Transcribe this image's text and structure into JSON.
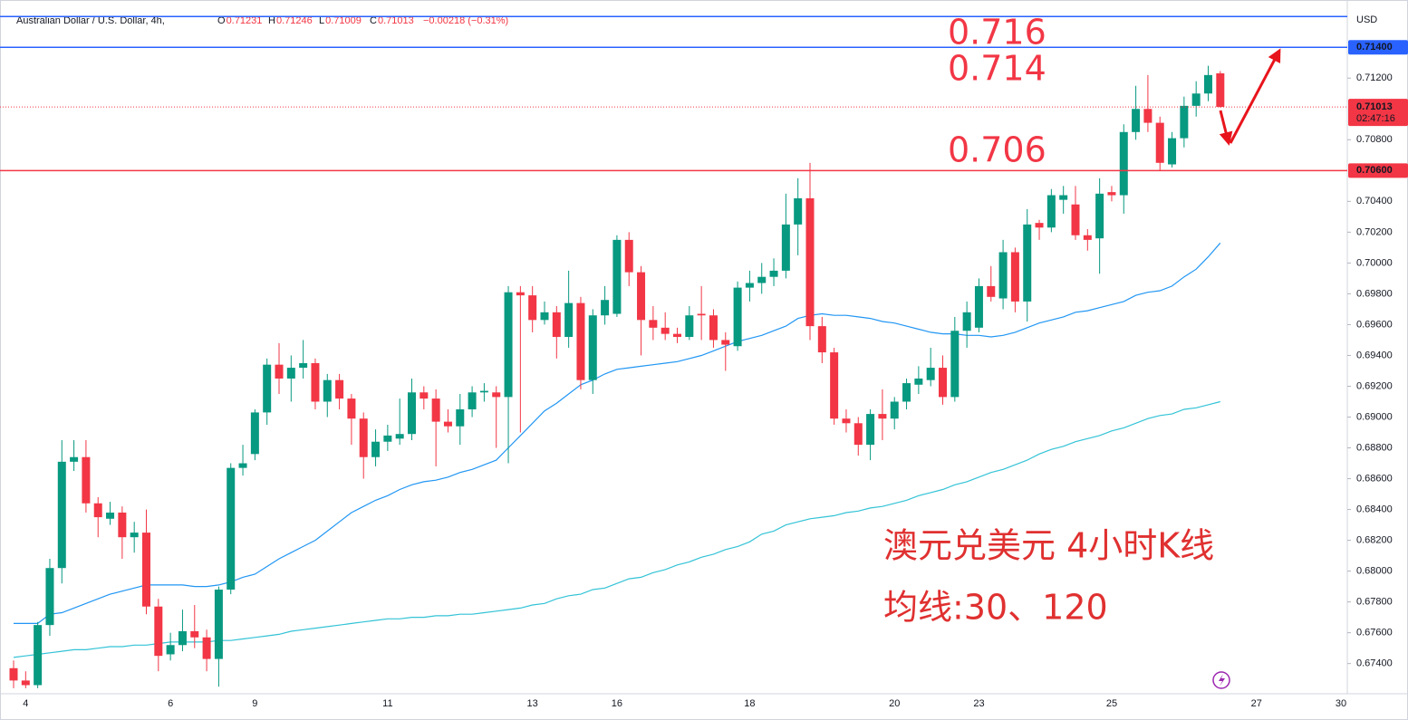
{
  "chart_data": {
    "type": "candlestick",
    "header": {
      "symbol": "Australian Dollar / U.S. Dollar, 4h,",
      "fields": [
        {
          "label": "O",
          "value": 0.71231
        },
        {
          "label": "H",
          "value": 0.71246
        },
        {
          "label": "L",
          "value": 0.71009
        },
        {
          "label": "C",
          "value": 0.71013
        }
      ],
      "change": "−0.00218 (−0.31%)"
    },
    "currency": "USD",
    "categories": [
      null,
      "4",
      null,
      null,
      null,
      null,
      null,
      null,
      null,
      null,
      null,
      null,
      null,
      "6",
      null,
      null,
      null,
      null,
      null,
      null,
      "9",
      null,
      null,
      null,
      null,
      null,
      null,
      null,
      null,
      null,
      null,
      "11",
      null,
      null,
      null,
      null,
      null,
      null,
      null,
      null,
      null,
      null,
      null,
      "13",
      null,
      null,
      null,
      null,
      null,
      null,
      "16",
      null,
      null,
      null,
      null,
      null,
      null,
      null,
      null,
      null,
      null,
      "18",
      null,
      null,
      null,
      null,
      null,
      null,
      null,
      null,
      null,
      null,
      null,
      "20",
      null,
      null,
      null,
      null,
      null,
      null,
      "23",
      null,
      null,
      null,
      null,
      null,
      null,
      null,
      null,
      null,
      null,
      "25",
      null,
      null,
      null,
      null,
      null,
      null,
      null,
      null,
      null,
      null,
      null,
      "27",
      null,
      null,
      null,
      null,
      null,
      null,
      "30"
    ],
    "open": [
      0.6737,
      0.6729,
      0.6726,
      0.6765,
      0.6802,
      0.6871,
      0.6874,
      0.6844,
      0.6834,
      0.6838,
      0.6822,
      0.6825,
      0.6777,
      0.6746,
      0.6752,
      0.6761,
      0.6757,
      0.6743,
      0.6788,
      0.6867,
      0.6876,
      0.6903,
      0.6934,
      0.6925,
      0.6932,
      0.6935,
      0.691,
      0.6924,
      0.6912,
      0.6899,
      0.6874,
      0.6884,
      0.6886,
      0.6889,
      0.6916,
      0.6912,
      0.6897,
      0.6894,
      0.6905,
      0.6916,
      0.6916,
      0.6913,
      0.6981,
      0.6979,
      0.6963,
      0.6968,
      0.6952,
      0.6974,
      0.6924,
      0.6966,
      0.6967,
      0.7015,
      0.6994,
      0.6963,
      0.6958,
      0.6954,
      0.6952,
      0.6967,
      0.6966,
      0.695,
      0.6946,
      0.6984,
      0.6987,
      0.6991,
      0.6995,
      0.7025,
      0.7042,
      0.6959,
      0.6942,
      0.6899,
      0.6896,
      0.6882,
      0.6902,
      0.6899,
      0.691,
      0.6921,
      0.6924,
      0.6932,
      0.6913,
      0.6956,
      0.6958,
      0.6985,
      0.6977,
      0.7007,
      0.6975,
      0.7026,
      0.7023,
      0.7041,
      0.7038,
      0.7018,
      0.7016,
      0.7046,
      0.7044,
      0.7085,
      0.71,
      0.7091,
      0.7064,
      0.7081,
      0.7102,
      0.711,
      0.71231,
      null,
      null,
      null,
      null,
      null,
      null,
      null,
      null,
      null,
      null
    ],
    "high": [
      0.6742,
      0.6735,
      0.6767,
      0.6808,
      0.6885,
      0.6885,
      0.6885,
      0.6848,
      0.6845,
      0.6842,
      0.6832,
      0.684,
      0.6782,
      0.676,
      0.6775,
      0.6778,
      0.6762,
      0.679,
      0.687,
      0.6882,
      0.6905,
      0.6938,
      0.6948,
      0.694,
      0.695,
      0.6938,
      0.6928,
      0.6928,
      0.6915,
      0.6903,
      0.6892,
      0.6895,
      0.6912,
      0.6925,
      0.692,
      0.6918,
      0.6905,
      0.6915,
      0.692,
      0.6922,
      0.692,
      0.6985,
      0.6985,
      0.6985,
      0.6975,
      0.6972,
      0.6995,
      0.6978,
      0.697,
      0.6985,
      0.7018,
      0.702,
      0.6998,
      0.6972,
      0.6968,
      0.6958,
      0.6972,
      0.6985,
      0.697,
      0.6955,
      0.6988,
      0.6995,
      0.7,
      0.7003,
      0.7045,
      0.7055,
      0.7065,
      0.6965,
      0.6945,
      0.6905,
      0.69,
      0.6905,
      0.6918,
      0.6913,
      0.6925,
      0.6933,
      0.6945,
      0.694,
      0.6965,
      0.6975,
      0.699,
      0.6998,
      0.7015,
      0.701,
      0.7035,
      0.7028,
      0.7048,
      0.705,
      0.705,
      0.7022,
      0.7055,
      0.705,
      0.709,
      0.7115,
      0.7122,
      0.7095,
      0.7085,
      0.7108,
      0.7118,
      0.7128,
      0.71246,
      null,
      null,
      null,
      null,
      null,
      null,
      null,
      null,
      null,
      null
    ],
    "low": [
      0.6724,
      0.6724,
      0.6724,
      0.6758,
      0.6792,
      0.6865,
      0.6838,
      0.6822,
      0.683,
      0.6808,
      0.6812,
      0.6772,
      0.6735,
      0.6742,
      0.6748,
      0.675,
      0.6735,
      0.6725,
      0.6785,
      0.6862,
      0.6872,
      0.6895,
      0.6915,
      0.691,
      0.6925,
      0.6905,
      0.69,
      0.6905,
      0.6882,
      0.686,
      0.6868,
      0.6878,
      0.6882,
      0.6885,
      0.6905,
      0.6868,
      0.689,
      0.6882,
      0.69,
      0.691,
      0.688,
      0.687,
      0.689,
      0.6955,
      0.696,
      0.6938,
      0.6945,
      0.6918,
      0.6915,
      0.696,
      0.6965,
      0.6985,
      0.694,
      0.695,
      0.695,
      0.6948,
      0.695,
      0.695,
      0.6945,
      0.693,
      0.6943,
      0.6975,
      0.698,
      0.6985,
      0.699,
      0.7005,
      0.695,
      0.6935,
      0.6895,
      0.689,
      0.6875,
      0.6872,
      0.6885,
      0.6892,
      0.6905,
      0.6915,
      0.692,
      0.6908,
      0.691,
      0.6945,
      0.6955,
      0.6975,
      0.697,
      0.6968,
      0.6962,
      0.7015,
      0.702,
      0.7032,
      0.7015,
      0.7008,
      0.6993,
      0.704,
      0.7032,
      0.708,
      0.7085,
      0.706,
      0.7062,
      0.7075,
      0.7095,
      0.7105,
      0.71009,
      null,
      null,
      null,
      null,
      null,
      null,
      null,
      null,
      null,
      null
    ],
    "close": [
      0.6729,
      0.6726,
      0.6765,
      0.6802,
      0.6871,
      0.6874,
      0.6844,
      0.6835,
      0.6838,
      0.6822,
      0.6825,
      0.6777,
      0.6745,
      0.6752,
      0.6761,
      0.6757,
      0.6743,
      0.6788,
      0.6867,
      0.687,
      0.6903,
      0.6934,
      0.6925,
      0.6932,
      0.6935,
      0.691,
      0.6924,
      0.6912,
      0.6899,
      0.6874,
      0.6884,
      0.6888,
      0.6889,
      0.6916,
      0.6912,
      0.6897,
      0.6894,
      0.6905,
      0.6916,
      0.6917,
      0.6913,
      0.6981,
      0.6979,
      0.6963,
      0.6968,
      0.6952,
      0.6974,
      0.6924,
      0.6966,
      0.6976,
      0.7015,
      0.6994,
      0.6963,
      0.6958,
      0.6954,
      0.6952,
      0.6966,
      0.6966,
      0.695,
      0.6947,
      0.6984,
      0.6987,
      0.6991,
      0.6995,
      0.7025,
      0.7042,
      0.6959,
      0.6942,
      0.6899,
      0.6896,
      0.6882,
      0.6902,
      0.6899,
      0.691,
      0.6922,
      0.6925,
      0.6932,
      0.6913,
      0.6956,
      0.6968,
      0.6985,
      0.6978,
      0.7007,
      0.6975,
      0.7025,
      0.7023,
      0.7044,
      0.7044,
      0.7018,
      0.7015,
      0.7045,
      0.7044,
      0.7085,
      0.71,
      0.7091,
      0.7065,
      0.7081,
      0.7102,
      0.711,
      0.7122,
      0.71013,
      null,
      null,
      null,
      null,
      null,
      null,
      null,
      null,
      null,
      null
    ],
    "up_color": "#089981",
    "down_color": "#f23645",
    "series": [
      {
        "color": "#2196f3",
        "values": [
          0.6766,
          0.6766,
          0.6766,
          0.6772,
          0.6773,
          0.6776,
          0.6779,
          0.6782,
          0.6785,
          0.6787,
          0.6789,
          0.6791,
          0.6791,
          0.6791,
          0.6791,
          0.679,
          0.679,
          0.6791,
          0.6793,
          0.6796,
          0.6798,
          0.6803,
          0.6808,
          0.6812,
          0.6816,
          0.682,
          0.6826,
          0.6832,
          0.6838,
          0.6842,
          0.6846,
          0.6849,
          0.6853,
          0.6856,
          0.6858,
          0.6859,
          0.6861,
          0.6864,
          0.6866,
          0.6869,
          0.6872,
          0.688,
          0.6888,
          0.6896,
          0.6904,
          0.6909,
          0.6915,
          0.6921,
          0.6924,
          0.6928,
          0.6931,
          0.6932,
          0.6933,
          0.6934,
          0.6935,
          0.6936,
          0.6938,
          0.694,
          0.6943,
          0.6946,
          0.6949,
          0.6951,
          0.6953,
          0.6956,
          0.6959,
          0.6964,
          0.6966,
          0.6967,
          0.6966,
          0.6966,
          0.6965,
          0.6964,
          0.6962,
          0.6961,
          0.6959,
          0.6957,
          0.6955,
          0.6954,
          0.6954,
          0.6953,
          0.6953,
          0.6952,
          0.6953,
          0.6955,
          0.6958,
          0.6961,
          0.6963,
          0.6965,
          0.6968,
          0.6969,
          0.6971,
          0.6973,
          0.6975,
          0.6979,
          0.6981,
          0.6982,
          0.6985,
          0.6991,
          0.6996,
          0.7004,
          0.7013,
          null,
          null,
          null,
          null,
          null,
          null,
          null,
          null,
          null,
          null
        ]
      },
      {
        "color": "#33c3d6",
        "values": [
          0.6744,
          0.6745,
          0.6746,
          0.6747,
          0.6748,
          0.6749,
          0.6749,
          0.675,
          0.6751,
          0.6751,
          0.6752,
          0.6752,
          0.6753,
          0.6754,
          0.6754,
          0.6754,
          0.6754,
          0.6755,
          0.6755,
          0.6756,
          0.6757,
          0.6758,
          0.6759,
          0.6761,
          0.6762,
          0.6763,
          0.6764,
          0.6765,
          0.6766,
          0.6767,
          0.6768,
          0.6769,
          0.6769,
          0.677,
          0.677,
          0.6771,
          0.6771,
          0.6772,
          0.6772,
          0.6773,
          0.6774,
          0.6775,
          0.6776,
          0.6778,
          0.6779,
          0.6782,
          0.6784,
          0.6785,
          0.6788,
          0.6789,
          0.6792,
          0.6795,
          0.6796,
          0.6799,
          0.6801,
          0.6804,
          0.6806,
          0.6809,
          0.6811,
          0.6814,
          0.6816,
          0.6819,
          0.6824,
          0.6826,
          0.683,
          0.6832,
          0.6834,
          0.6835,
          0.6836,
          0.6838,
          0.6839,
          0.6841,
          0.6842,
          0.6844,
          0.6846,
          0.6849,
          0.6851,
          0.6853,
          0.6856,
          0.6858,
          0.6861,
          0.6864,
          0.6866,
          0.6869,
          0.6872,
          0.6876,
          0.6879,
          0.6881,
          0.6884,
          0.6886,
          0.6888,
          0.6891,
          0.6893,
          0.6896,
          0.6899,
          0.6901,
          0.6902,
          0.6905,
          0.6906,
          0.6908,
          0.691,
          null,
          null,
          null,
          null,
          null,
          null,
          null,
          null,
          null,
          null
        ]
      }
    ],
    "ylim": [
      0.6721,
      0.7166
    ],
    "yticks": [
      {
        "value": 0.674,
        "label": "0.67400"
      },
      {
        "value": 0.676,
        "label": "0.67600"
      },
      {
        "value": 0.678,
        "label": "0.67800"
      },
      {
        "value": 0.68,
        "label": "0.68000"
      },
      {
        "value": 0.682,
        "label": "0.68200"
      },
      {
        "value": 0.684,
        "label": "0.68400"
      },
      {
        "value": 0.686,
        "label": "0.68600"
      },
      {
        "value": 0.688,
        "label": "0.68800"
      },
      {
        "value": 0.69,
        "label": "0.69000"
      },
      {
        "value": 0.692,
        "label": "0.69200"
      },
      {
        "value": 0.694,
        "label": "0.69400"
      },
      {
        "value": 0.696,
        "label": "0.69600"
      },
      {
        "value": 0.698,
        "label": "0.69800"
      },
      {
        "value": 0.7,
        "label": "0.70000"
      },
      {
        "value": 0.702,
        "label": "0.70200"
      },
      {
        "value": 0.704,
        "label": "0.70400"
      },
      {
        "value": 0.708,
        "label": "0.70800"
      },
      {
        "value": 0.712,
        "label": "0.71200"
      }
    ],
    "levels": [
      {
        "value": 0.716,
        "color": "#2962ff"
      },
      {
        "value": 0.714,
        "label": "0.71400",
        "color": "#2962ff"
      },
      {
        "value": 0.706,
        "label": "0.70600",
        "color": "#f23645"
      }
    ],
    "current_price": {
      "value": 0.71013,
      "label": "0.71013",
      "countdown": "02:47:16"
    },
    "annotations": [
      "0.716",
      "0.714",
      "0.706"
    ],
    "caption": [
      "澳元兑美元 4小时K线",
      "均线:30、120"
    ]
  }
}
